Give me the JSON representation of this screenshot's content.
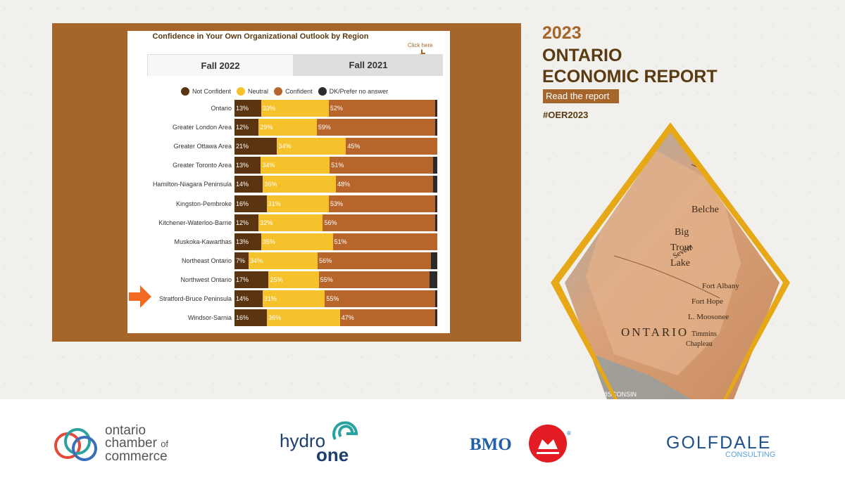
{
  "chart_data": {
    "type": "bar",
    "orientation": "horizontal-stacked",
    "title": "Confidence in Your Own Organizational Outlook by Region",
    "title_link_word": "Region",
    "tabs": [
      {
        "label": "Fall 2022",
        "active": true
      },
      {
        "label": "Fall 2021",
        "active": false
      }
    ],
    "click_hint": "Click here",
    "legend_placement": "top",
    "categories": [
      "Ontario",
      "Greater London Area",
      "Greater Ottawa Area",
      "Greater Toronto Area",
      "Hamilton-Niagara Peninsula",
      "Kingston-Pembroke",
      "Kitchener-Waterloo-Barrie",
      "Muskoka-Kawarthas",
      "Northeast Ontario",
      "Northwest Ontario",
      "Stratford-Bruce Peninsula",
      "Windsor-Sarnia"
    ],
    "series": [
      {
        "name": "Not Confident",
        "color": "#5b3511",
        "values": [
          13,
          12,
          21,
          13,
          14,
          16,
          12,
          13,
          7,
          17,
          14,
          16
        ]
      },
      {
        "name": "Neutral",
        "color": "#f5c22c",
        "values": [
          33,
          29,
          34,
          34,
          36,
          31,
          32,
          35,
          34,
          25,
          31,
          36
        ]
      },
      {
        "name": "Confident",
        "color": "#b7652a",
        "values": [
          52,
          59,
          45,
          51,
          48,
          53,
          56,
          51,
          56,
          55,
          55,
          47
        ]
      },
      {
        "name": "DK/Prefer no answer",
        "color": "#2b2b2b",
        "values": [
          1,
          1,
          0,
          2,
          2,
          1,
          1,
          0,
          3,
          4,
          1,
          1
        ]
      }
    ],
    "value_suffix": "%",
    "highlighted_category": "Stratford-Bruce Peninsula"
  },
  "report": {
    "year": "2023",
    "title_line1": "ONTARIO",
    "title_line2": "ECONOMIC REPORT",
    "read_button": "Read the report",
    "hashtag": "#OER2023"
  },
  "map_labels": [
    "Big",
    "Trout",
    "Lake",
    "Fort Albany",
    "Fort Hope",
    "L. Moosonee",
    "ONTARIO",
    "Belche",
    "Severn",
    "Timmins",
    "Chapleau",
    "WISCONSIN"
  ],
  "logos": {
    "occ_line1": "ontario",
    "occ_line2": "chamber",
    "occ_of": "of",
    "occ_line3": "commerce",
    "hydro_word": "hydro",
    "hydro_one": "one",
    "bmo": "BMO",
    "bmo_reg": "®",
    "golfdale": "GOLFDALE",
    "consulting": "CONSULTING"
  },
  "colors": {
    "frame_brown": "#a6652a",
    "dark_brown": "#5a3a10",
    "arrow_orange": "#f26a21",
    "gold": "#e6a817"
  }
}
